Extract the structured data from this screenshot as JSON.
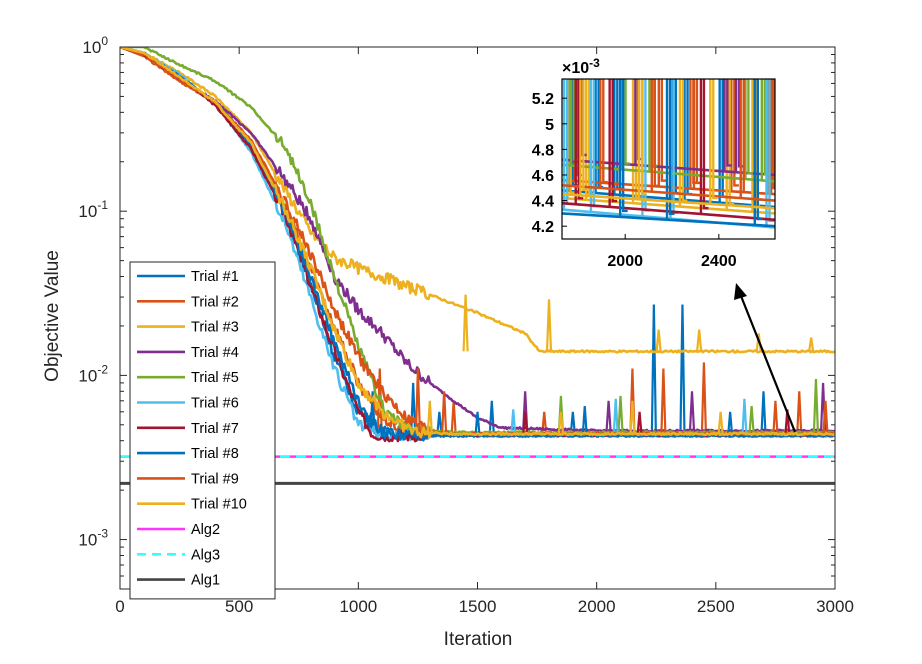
{
  "chart_data": {
    "type": "line",
    "xlabel": "Iteration",
    "ylabel": "Objective Value",
    "xlim": [
      0,
      3000
    ],
    "ylim": [
      0.0005,
      1
    ],
    "yscale": "log",
    "xticks": [
      "0",
      "500",
      "1000",
      "1500",
      "2000",
      "2500",
      "3000"
    ],
    "yticks": [
      {
        "base": "10",
        "exp": "0",
        "value": 1
      },
      {
        "base": "10",
        "exp": "-1",
        "value": 0.1
      },
      {
        "base": "10",
        "exp": "-2",
        "value": 0.01
      },
      {
        "base": "10",
        "exp": "-3",
        "value": 0.001
      }
    ],
    "legend_position": "bottom-left",
    "series": [
      {
        "name": "Trial #1",
        "color": "#0072BD",
        "style": "solid",
        "x": [
          0,
          100,
          250,
          400,
          550,
          700,
          800,
          900,
          1000,
          1100,
          1200,
          1400,
          1600,
          2000,
          2500,
          3000
        ],
        "y": [
          1,
          0.9,
          0.65,
          0.45,
          0.25,
          0.09,
          0.035,
          0.013,
          0.006,
          0.0045,
          0.0044,
          0.0044,
          0.0044,
          0.0044,
          0.0044,
          0.0044
        ],
        "spikes": [
          [
            1060,
            0.008
          ],
          [
            1230,
            0.009
          ],
          [
            1340,
            0.006
          ],
          [
            1560,
            0.007
          ],
          [
            1900,
            0.006
          ],
          [
            2240,
            0.027
          ],
          [
            2360,
            0.027
          ],
          [
            2700,
            0.008
          ]
        ]
      },
      {
        "name": "Trial #2",
        "color": "#D95319",
        "style": "solid",
        "x": [
          0,
          100,
          250,
          400,
          550,
          700,
          800,
          900,
          1000,
          1100,
          1200,
          1400,
          1600,
          2000,
          2500,
          3000
        ],
        "y": [
          1,
          0.88,
          0.62,
          0.46,
          0.27,
          0.1,
          0.045,
          0.02,
          0.009,
          0.0055,
          0.0045,
          0.0044,
          0.0044,
          0.0044,
          0.0044,
          0.0044
        ],
        "spikes": [
          [
            1090,
            0.011
          ],
          [
            1400,
            0.007
          ],
          [
            1780,
            0.006
          ],
          [
            2450,
            0.012
          ],
          [
            2850,
            0.008
          ]
        ]
      },
      {
        "name": "Trial #3",
        "color": "#EDB120",
        "style": "solid",
        "x": [
          0,
          100,
          250,
          400,
          550,
          700,
          800,
          900,
          1000,
          1100,
          1200,
          1300,
          1500,
          1700,
          1760,
          2000,
          2500,
          3000
        ],
        "y": [
          1,
          0.92,
          0.7,
          0.5,
          0.3,
          0.13,
          0.075,
          0.052,
          0.045,
          0.04,
          0.035,
          0.031,
          0.024,
          0.018,
          0.014,
          0.014,
          0.014,
          0.014
        ],
        "spikes": [
          [
            1450,
            0.031
          ],
          [
            1800,
            0.029
          ],
          [
            2260,
            0.019
          ],
          [
            2430,
            0.019
          ],
          [
            2680,
            0.018
          ],
          [
            2900,
            0.017
          ]
        ]
      },
      {
        "name": "Trial #4",
        "color": "#7E2F8E",
        "style": "solid",
        "x": [
          0,
          100,
          250,
          400,
          550,
          700,
          800,
          900,
          1000,
          1100,
          1200,
          1300,
          1400,
          1500,
          1600,
          2000,
          2500,
          3000
        ],
        "y": [
          1,
          0.9,
          0.64,
          0.47,
          0.3,
          0.15,
          0.09,
          0.04,
          0.025,
          0.018,
          0.012,
          0.009,
          0.007,
          0.0055,
          0.0048,
          0.0046,
          0.0046,
          0.0046
        ],
        "spikes": [
          [
            1700,
            0.008
          ],
          [
            2050,
            0.007
          ],
          [
            2400,
            0.008
          ],
          [
            2950,
            0.009
          ]
        ]
      },
      {
        "name": "Trial #5",
        "color": "#77AC30",
        "style": "solid",
        "x": [
          0,
          100,
          250,
          400,
          550,
          700,
          800,
          900,
          1000,
          1100,
          1200,
          1400,
          1600,
          2000,
          2500,
          3000
        ],
        "y": [
          1,
          1,
          0.78,
          0.62,
          0.43,
          0.24,
          0.11,
          0.04,
          0.015,
          0.0065,
          0.0047,
          0.0045,
          0.0045,
          0.0045,
          0.0045,
          0.0045
        ],
        "spikes": [
          [
            1850,
            0.0075
          ],
          [
            2100,
            0.0075
          ],
          [
            2650,
            0.0065
          ],
          [
            2920,
            0.0095
          ]
        ]
      },
      {
        "name": "Trial #6",
        "color": "#4DBEEE",
        "style": "solid",
        "x": [
          0,
          100,
          250,
          400,
          550,
          700,
          800,
          900,
          1000,
          1100,
          1200,
          1400,
          1600,
          2000,
          2500,
          3000
        ],
        "y": [
          1,
          0.92,
          0.68,
          0.45,
          0.23,
          0.08,
          0.03,
          0.011,
          0.005,
          0.0043,
          0.0043,
          0.0043,
          0.0043,
          0.0043,
          0.0043,
          0.0043
        ],
        "spikes": [
          [
            1650,
            0.0062
          ],
          [
            2080,
            0.0072
          ],
          [
            2620,
            0.0072
          ]
        ]
      },
      {
        "name": "Trial #7",
        "color": "#A2142F",
        "style": "solid",
        "x": [
          0,
          100,
          250,
          400,
          550,
          700,
          800,
          900,
          1000,
          1060,
          1100,
          1400,
          1600,
          2000,
          2500,
          3000
        ],
        "y": [
          1,
          0.9,
          0.66,
          0.44,
          0.24,
          0.09,
          0.035,
          0.014,
          0.006,
          0.0044,
          0.0043,
          0.0043,
          0.0043,
          0.0043,
          0.0043,
          0.0043
        ],
        "spikes": [
          [
            1700,
            0.006
          ],
          [
            2180,
            0.006
          ],
          [
            2800,
            0.0062
          ]
        ]
      },
      {
        "name": "Trial #8",
        "color": "#0072BD",
        "style": "solid",
        "x": [
          0,
          100,
          250,
          400,
          550,
          700,
          800,
          900,
          1000,
          1100,
          1200,
          1400,
          1600,
          2000,
          2500,
          3000
        ],
        "y": [
          1,
          0.92,
          0.66,
          0.46,
          0.26,
          0.095,
          0.04,
          0.016,
          0.007,
          0.0045,
          0.0043,
          0.0043,
          0.0043,
          0.0043,
          0.0043,
          0.0043
        ],
        "spikes": [
          [
            1500,
            0.006
          ],
          [
            1950,
            0.0065
          ],
          [
            2560,
            0.006
          ]
        ]
      },
      {
        "name": "Trial #9",
        "color": "#D95319",
        "style": "solid",
        "x": [
          0,
          100,
          250,
          400,
          550,
          700,
          800,
          900,
          1000,
          1100,
          1200,
          1300,
          1400,
          1600,
          2000,
          2500,
          3000
        ],
        "y": [
          1,
          0.9,
          0.64,
          0.46,
          0.27,
          0.11,
          0.055,
          0.025,
          0.013,
          0.008,
          0.0055,
          0.0046,
          0.0044,
          0.0044,
          0.0044,
          0.0044,
          0.0044
        ],
        "spikes": [
          [
            1250,
            0.011
          ],
          [
            1360,
            0.008
          ],
          [
            2150,
            0.011
          ],
          [
            2280,
            0.011
          ],
          [
            2750,
            0.007
          ],
          [
            2960,
            0.007
          ]
        ]
      },
      {
        "name": "Trial #10",
        "color": "#EDB120",
        "style": "solid",
        "x": [
          0,
          100,
          250,
          400,
          550,
          700,
          800,
          900,
          1000,
          1100,
          1200,
          1250,
          1400,
          1600,
          2000,
          2500,
          3000
        ],
        "y": [
          1,
          0.92,
          0.66,
          0.46,
          0.26,
          0.1,
          0.045,
          0.019,
          0.009,
          0.006,
          0.0048,
          0.0045,
          0.0044,
          0.0044,
          0.0044,
          0.0044,
          0.0044
        ],
        "spikes": [
          [
            1300,
            0.007
          ],
          [
            1850,
            0.006
          ],
          [
            2150,
            0.007
          ],
          [
            2520,
            0.006
          ]
        ]
      },
      {
        "name": "Alg2",
        "color": "#FF33FF",
        "style": "solid",
        "x": [
          0,
          3000
        ],
        "y": [
          0.0032,
          0.0032
        ]
      },
      {
        "name": "Alg3",
        "color": "#33FFFF",
        "style": "dashed",
        "x": [
          0,
          3000
        ],
        "y": [
          0.0032,
          0.0032
        ]
      },
      {
        "name": "Alg1",
        "color": "#444444",
        "style": "solid",
        "x": [
          0,
          3000
        ],
        "y": [
          0.0022,
          0.0022
        ]
      }
    ],
    "inset": {
      "exponent_label": "×10",
      "exponent": "-3",
      "xlim": [
        1730,
        2640
      ],
      "ylim": [
        4.1,
        5.35
      ],
      "xticks": [
        "2000",
        "2400"
      ],
      "xtick_values": [
        2000,
        2400
      ],
      "yticks": [
        "4.2",
        "4.4",
        "4.6",
        "4.8",
        "5",
        "5.2"
      ],
      "ytick_values": [
        4.2,
        4.4,
        4.6,
        4.8,
        5.0,
        5.2
      ],
      "series": [
        {
          "color": "#0072BD",
          "y0": 4.48,
          "y1": 4.35,
          "spikes": [
            1770,
            1880,
            1960,
            2210,
            2260,
            2410,
            2560
          ]
        },
        {
          "color": "#D95319",
          "y0": 4.56,
          "y1": 4.45,
          "spikes": [
            1790,
            2150,
            2285,
            2300,
            2460,
            2620,
            2630
          ]
        },
        {
          "color": "#EDB120",
          "y0": 4.42,
          "y1": 4.3,
          "spikes": [
            1760,
            1840,
            2040,
            2240,
            2440,
            2550
          ]
        },
        {
          "color": "#7E2F8E",
          "y0": 4.72,
          "y1": 4.6,
          "spikes": [
            1810,
            2050,
            2430,
            2480
          ]
        },
        {
          "color": "#77AC30",
          "y0": 4.68,
          "y1": 4.55,
          "spikes": [
            1775,
            1995,
            2110,
            2520,
            2590
          ]
        },
        {
          "color": "#4DBEEE",
          "y0": 4.33,
          "y1": 4.19,
          "spikes": [
            1745,
            1860,
            2080,
            2200,
            2610
          ]
        },
        {
          "color": "#A2142F",
          "y0": 4.38,
          "y1": 4.25,
          "spikes": [
            1795,
            1940,
            2330
          ]
        },
        {
          "color": "#0072BD",
          "y0": 4.3,
          "y1": 4.2,
          "spikes": [
            1985,
            2185,
            2560
          ]
        },
        {
          "color": "#D95319",
          "y0": 4.52,
          "y1": 4.4,
          "spikes": [
            1900,
            2120,
            2500
          ]
        },
        {
          "color": "#EDB120",
          "y0": 4.45,
          "y1": 4.34,
          "spikes": [
            1815,
            2065,
            2370
          ]
        }
      ]
    }
  }
}
